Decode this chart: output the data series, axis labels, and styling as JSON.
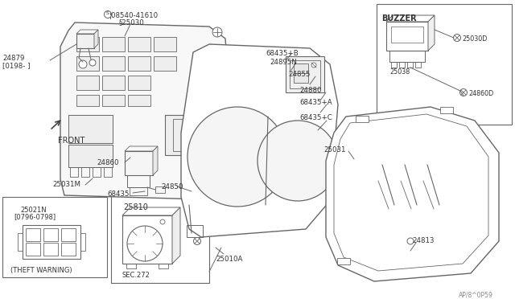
{
  "bg_color": "#ffffff",
  "line_color": "#666666",
  "text_color": "#333333",
  "diagram_number": "AP/8^0P59",
  "labels": {
    "buzzer_title": "BUZZER",
    "theft_warning": "(THEFT WARNING)",
    "front_label": "FRONT",
    "sec272": "SEC.272",
    "part_25030": "§25030",
    "part_08540": "¦08540-41610",
    "part_24879": "24879",
    "part_24879b": "[0198- ]",
    "part_25031M": "25031M",
    "part_24860": "24860",
    "part_68435": "68435",
    "part_24850": "24850",
    "part_25021N": "25021N",
    "part_25021Nb": "[0796-0798]",
    "part_25810": "25810",
    "part_25010A": "25010A",
    "part_24813": "24813",
    "part_25031": "25031",
    "part_68435B": "68435+B",
    "part_24895N": "24895N",
    "part_24855": "24855",
    "part_24880": "24880",
    "part_68435A": "68435+A",
    "part_68435C": "68435+C",
    "part_25030D": "25030D",
    "part_25038": "25038",
    "part_24860D": "24860D"
  }
}
